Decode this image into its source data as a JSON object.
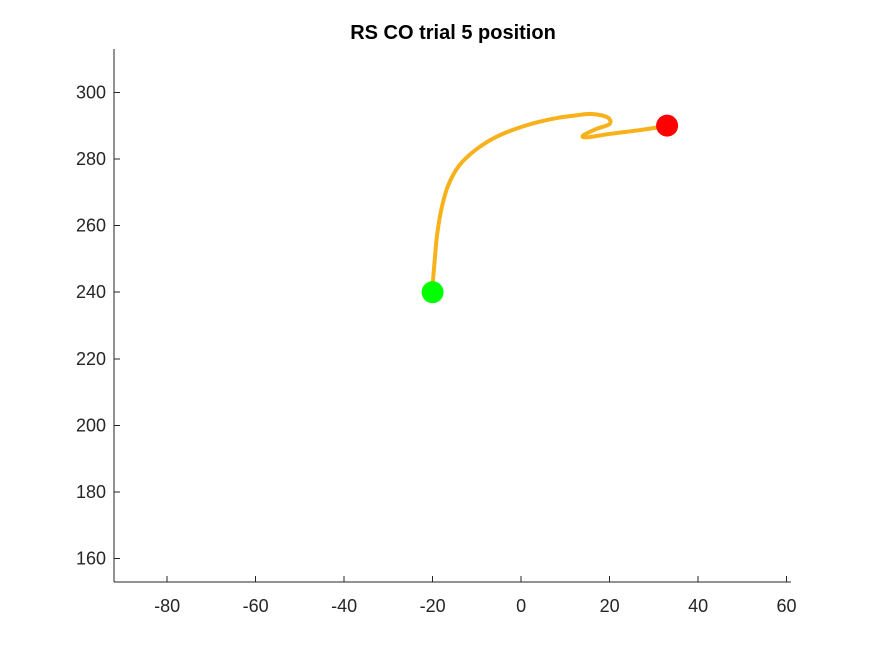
{
  "chart_data": {
    "type": "line",
    "title": "RS  CO trial 5 position",
    "xlabel": "",
    "ylabel": "",
    "xlim": [
      -92,
      61
    ],
    "ylim": [
      153,
      313
    ],
    "xticks": [
      -80,
      -60,
      -40,
      -20,
      0,
      20,
      40,
      60
    ],
    "yticks": [
      160,
      180,
      200,
      220,
      240,
      260,
      280,
      300
    ],
    "xtick_labels": [
      "-80",
      "-60",
      "-40",
      "-20",
      "0",
      "20",
      "40",
      "60"
    ],
    "ytick_labels": [
      "160",
      "180",
      "200",
      "220",
      "240",
      "260",
      "280",
      "300"
    ],
    "grid": false,
    "box": false,
    "series": [
      {
        "color": "#F7B21B",
        "x": [
          -20,
          -19.5,
          -19,
          -18,
          -16.5,
          -14,
          -10,
          -5,
          1,
          7,
          12,
          16,
          19.5,
          20,
          17,
          14,
          15,
          20,
          26,
          31,
          33
        ],
        "y": [
          242,
          250,
          257,
          265,
          272,
          278,
          283,
          287,
          290,
          292,
          293,
          293.5,
          292.5,
          290.5,
          289,
          287,
          286.5,
          287.5,
          288.5,
          289.5,
          290
        ]
      }
    ],
    "markers": [
      {
        "x": -20,
        "y": 240,
        "color": "#00FF00"
      },
      {
        "x": 33,
        "y": 290,
        "color": "#FF0000"
      }
    ]
  }
}
